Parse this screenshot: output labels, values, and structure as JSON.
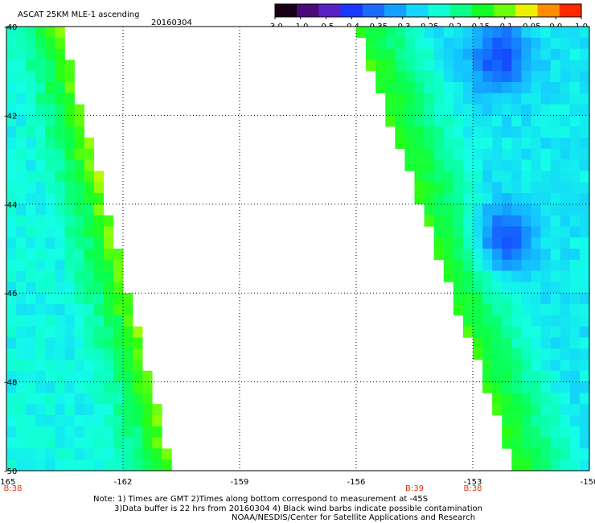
{
  "chart_data": {
    "type": "heatmap",
    "title": "ASCAT 25KM MLE-1 ascending",
    "date": "20160304",
    "x_ticks": [
      "-165",
      "-162",
      "-159",
      "-156",
      "-153",
      "-150"
    ],
    "y_ticks": [
      "-40",
      "-42",
      "-44",
      "-46",
      "-48",
      "-50"
    ],
    "xlim": [
      -165,
      -150
    ],
    "ylim": [
      -50,
      -40
    ],
    "grid": true,
    "time_labels": [
      {
        "lon": -165,
        "label": "B:38"
      },
      {
        "lon": -154.5,
        "label": "B:39"
      },
      {
        "lon": -153,
        "label": "B:38"
      }
    ],
    "colorbar": {
      "labels": [
        "-3.0",
        "-1.0",
        "-0.5",
        "-0.4",
        "-0.35",
        "-0.3",
        "-0.25",
        "-0.2",
        "-0.15",
        "-0.1",
        "-0.05",
        "0.0",
        "1.0"
      ],
      "colors": [
        "#1a0016",
        "#4a0a78",
        "#5a20c8",
        "#1838ff",
        "#1a6cff",
        "#14a0ff",
        "#14d8ff",
        "#10ffd6",
        "#0aff8a",
        "#12ff26",
        "#6cff0a",
        "#ecf000",
        "#ff8c00",
        "#ff2800"
      ]
    },
    "swaths": [
      {
        "name": "west",
        "value_range": [
          -0.35,
          -0.05
        ]
      },
      {
        "name": "east",
        "value_range": [
          -0.4,
          -0.05
        ]
      }
    ]
  },
  "notes": [
    "Note: 1) Times are GMT 2)Times along bottom correspond to measurement at -45S",
    "3)Data buffer is 22 hrs from 20160304 4) Black wind barbs indicate possible contamination",
    "NOAA/NESDIS/Center for Satellite Applications and Research"
  ]
}
